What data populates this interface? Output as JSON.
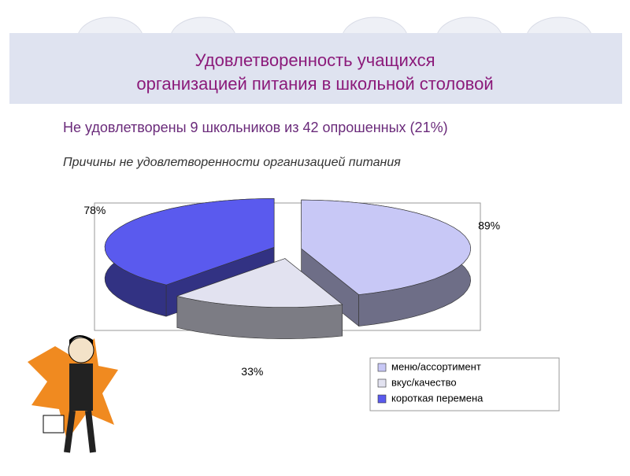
{
  "slide": {
    "title": [
      "Удовлетворенность учащихся",
      "организацией питания в школьной столовой"
    ],
    "note": "Не удовлетворены 9 школьников из 42 опрошенных (21%)"
  },
  "chart_data": {
    "type": "pie",
    "title": "Причины не удовлетворенности организацией питания",
    "categories": [
      "меню/ассортимент",
      "вкус/качество",
      "короткая перемена"
    ],
    "values": [
      89,
      33,
      78
    ],
    "value_labels": [
      "89%",
      "33%",
      "78%"
    ],
    "colors": [
      "#c8c8f6",
      "#e2e2f0",
      "#5a5aee"
    ]
  }
}
